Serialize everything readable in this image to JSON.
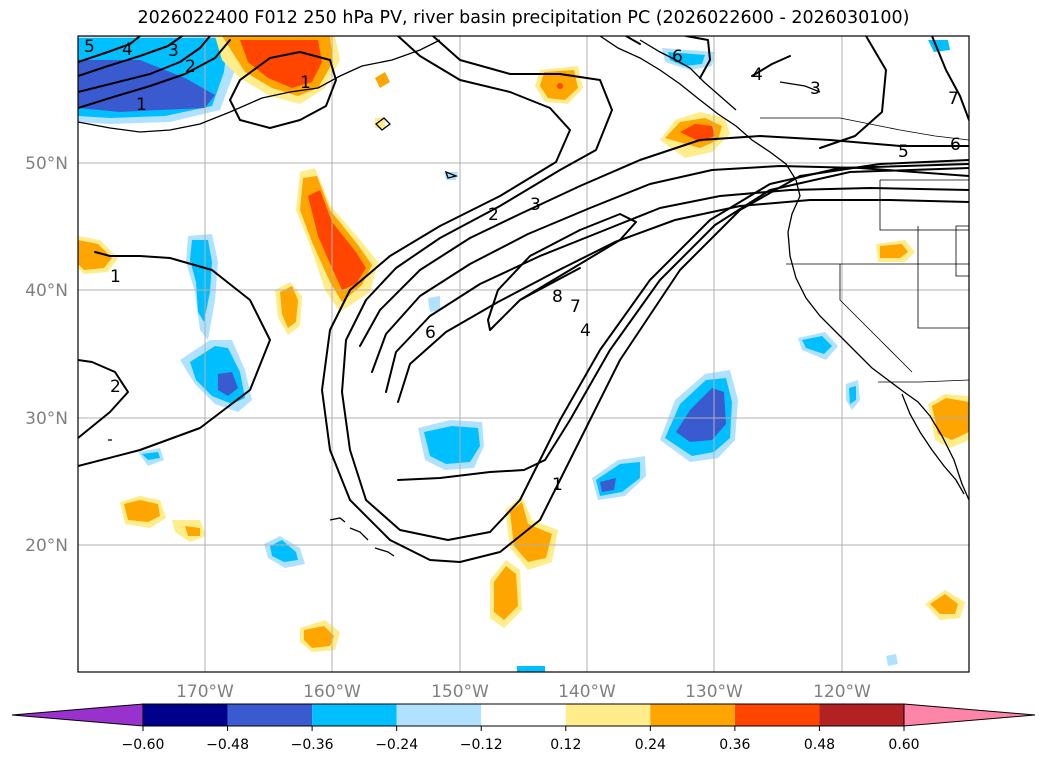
{
  "title": "2026022400 F012 250 hPa PV, river basin precipitation PC (2026022600 - 2026030100)",
  "map": {
    "lat_labels": [
      "50°N",
      "40°N",
      "30°N",
      "20°N"
    ],
    "lon_labels": [
      "170°W",
      "160°W",
      "150°W",
      "140°W",
      "130°W",
      "120°W"
    ]
  },
  "contour_labels": [
    "5",
    "4",
    "3",
    "2",
    "1",
    "1",
    "1",
    "2",
    "2",
    "3",
    "6",
    "8",
    "7",
    "4",
    "1",
    "4",
    "3",
    "5",
    "6",
    "7",
    "6"
  ],
  "colorbar": {
    "ticks": [
      "−0.60",
      "−0.48",
      "−0.36",
      "−0.24",
      "−0.12",
      "0.12",
      "0.24",
      "0.36",
      "0.48",
      "0.60"
    ],
    "colors": [
      "#9932cc",
      "#00008b",
      "#3a5bd0",
      "#00bfff",
      "#b0e2ff",
      "#ffffff",
      "#ffec8b",
      "#ffa500",
      "#ff4500",
      "#b22222",
      "#ff85a8"
    ]
  },
  "shading_colors": {
    "neg_light": "#b0e2ff",
    "neg_mid": "#00bfff",
    "neg_strong": "#3a5bd0",
    "pos_light": "#ffec8b",
    "pos_mid": "#ffa500",
    "pos_strong": "#ff4500"
  }
}
